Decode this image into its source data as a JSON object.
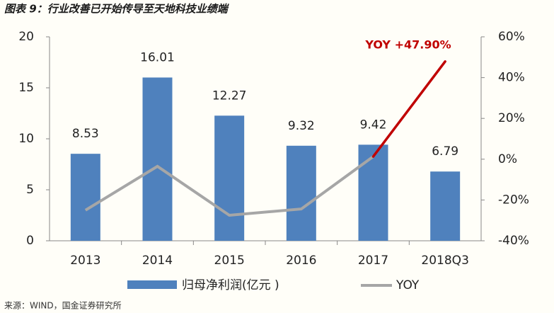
{
  "chart_data": {
    "type": "bar",
    "title": "图表 9：行业改善已开始传导至天地科技业绩端",
    "source": "来源：WIND，国金证券研究所",
    "annotation": "YOY +47.90%",
    "categories": [
      "2013",
      "2014",
      "2015",
      "2016",
      "2017",
      "2018Q3"
    ],
    "series": [
      {
        "name": "归母净利润(亿元 )",
        "color": "#4f81bd",
        "values": [
          8.53,
          16.01,
          12.27,
          9.32,
          9.42,
          6.79
        ]
      },
      {
        "name": "YOY",
        "color": "#a6a6a6",
        "highlight_color": "#c00000",
        "axis": "y2",
        "values": [
          -25,
          -3.5,
          -27.5,
          -24.4,
          1.3,
          47.9
        ]
      }
    ],
    "ylim": [
      0,
      20
    ],
    "yticks": [
      0,
      5,
      10,
      15,
      20
    ],
    "y2lim": [
      -40,
      60
    ],
    "y2ticks": [
      {
        "value": -40,
        "label": "-40%"
      },
      {
        "value": -20,
        "label": "-20%"
      },
      {
        "value": 0,
        "label": "0%"
      },
      {
        "value": 20,
        "label": "20%"
      },
      {
        "value": 40,
        "label": "40%"
      },
      {
        "value": 60,
        "label": "60%"
      }
    ]
  }
}
